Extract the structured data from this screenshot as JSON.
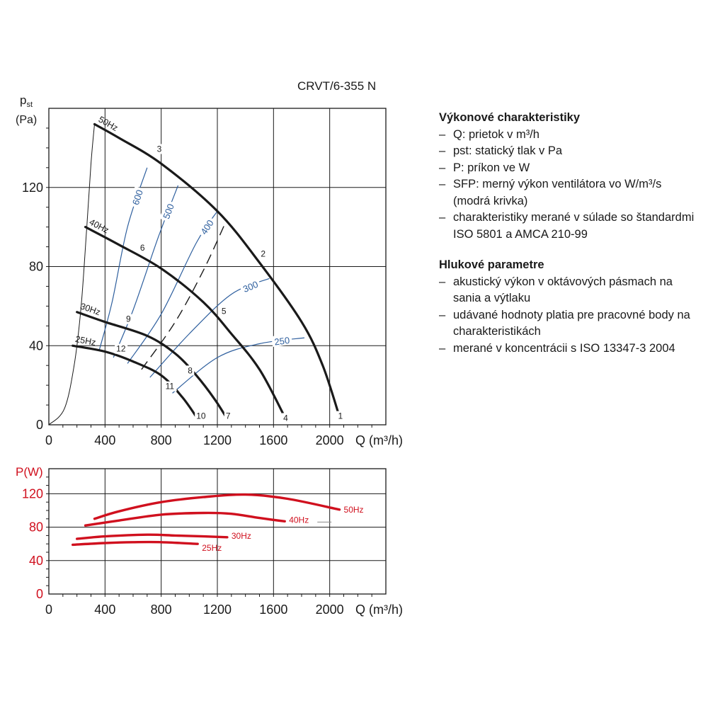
{
  "page": {
    "model": "CRVT/6-355 N"
  },
  "legend": {
    "title1": "Výkonové charakteristiky",
    "items1": [
      "Q: prietok v m³/h",
      "pst: statický tlak v Pa",
      "P: príkon ve W",
      "SFP: merný výkon ventilátora vo W/m³/s (modrá krivka)",
      "charakteristiky merané v súlade so štandardmi ISO 5801 a AMCA 210-99"
    ],
    "title2": "Hlukové parametre",
    "items2": [
      "akustický výkon v oktávových pásmach na sania a výtlaku",
      "udávané hodnoty platia pre pracovné body na charakteristikách",
      "merané v koncentrácii s ISO 13347-3 2004"
    ]
  },
  "colors": {
    "fan_curve": "#1a1a1a",
    "sfp_curve": "#2e5f9e",
    "power_curve": "#d0101e",
    "grid": "#1a1a1a"
  },
  "chart_data": [
    {
      "type": "line",
      "title": "",
      "xlabel": "Q (m³/h)",
      "ylabel": "pst (Pa)",
      "xlim": [
        0,
        2400
      ],
      "ylim": [
        0,
        160
      ],
      "x_ticks": [
        0,
        400,
        800,
        1200,
        1600,
        2000
      ],
      "y_ticks": [
        0,
        40,
        80,
        120
      ],
      "grid": true,
      "series": [
        {
          "name": "50Hz",
          "points": [
            [
              325,
              152
            ],
            [
              500,
              145
            ],
            [
              800,
              132
            ],
            [
              1200,
              108
            ],
            [
              1500,
              82
            ],
            [
              1800,
              52
            ],
            [
              1950,
              30
            ],
            [
              2070,
              4
            ]
          ]
        },
        {
          "name": "40Hz",
          "points": [
            [
              260,
              100
            ],
            [
              500,
              91
            ],
            [
              800,
              79
            ],
            [
              1100,
              62
            ],
            [
              1300,
              46
            ],
            [
              1500,
              28
            ],
            [
              1680,
              4
            ]
          ]
        },
        {
          "name": "30Hz",
          "points": [
            [
              200,
              57
            ],
            [
              400,
              52
            ],
            [
              700,
              45
            ],
            [
              900,
              36
            ],
            [
              1050,
              25
            ],
            [
              1180,
              13
            ],
            [
              1270,
              3
            ]
          ]
        },
        {
          "name": "25Hz",
          "points": [
            [
              170,
              40
            ],
            [
              400,
              37
            ],
            [
              600,
              32
            ],
            [
              800,
              25
            ],
            [
              950,
              14
            ],
            [
              1060,
              3
            ]
          ]
        }
      ],
      "sfp_curves": [
        {
          "label": "600",
          "points": [
            [
              360,
              38
            ],
            [
              450,
              62
            ],
            [
              560,
              100
            ],
            [
              700,
              130
            ]
          ]
        },
        {
          "label": "500",
          "points": [
            [
              460,
              34
            ],
            [
              600,
              58
            ],
            [
              780,
              95
            ],
            [
              920,
              121
            ]
          ]
        },
        {
          "label": "400",
          "points": [
            [
              560,
              31
            ],
            [
              800,
              56
            ],
            [
              1050,
              92
            ],
            [
              1200,
              108
            ]
          ]
        },
        {
          "label": "300",
          "points": [
            [
              720,
              24
            ],
            [
              1000,
              46
            ],
            [
              1300,
              66
            ],
            [
              1570,
              74
            ]
          ]
        },
        {
          "label": "250",
          "points": [
            [
              880,
              16
            ],
            [
              1200,
              34
            ],
            [
              1500,
              41
            ],
            [
              1820,
              44
            ]
          ]
        }
      ],
      "system_curves": [
        {
          "points": [
            [
              0,
              0
            ],
            [
              110,
              8
            ],
            [
              180,
              30
            ],
            [
              230,
              60
            ],
            [
              270,
              100
            ],
            [
              300,
              132
            ],
            [
              325,
              152
            ]
          ]
        },
        {
          "points": [
            [
              660,
              28
            ],
            [
              900,
              52
            ],
            [
              1100,
              78
            ],
            [
              1250,
              101
            ]
          ],
          "dashed": true
        }
      ],
      "point_labels": [
        {
          "text": "1",
          "at": [
            2090,
            3
          ]
        },
        {
          "text": "2",
          "at": [
            1540,
            85
          ]
        },
        {
          "text": "3",
          "at": [
            800,
            138
          ]
        },
        {
          "text": "4",
          "at": [
            1700,
            2
          ]
        },
        {
          "text": "5",
          "at": [
            1260,
            56
          ]
        },
        {
          "text": "6",
          "at": [
            680,
            88
          ]
        },
        {
          "text": "7",
          "at": [
            1290,
            3
          ]
        },
        {
          "text": "8",
          "at": [
            1020,
            26
          ]
        },
        {
          "text": "9",
          "at": [
            580,
            52
          ]
        },
        {
          "text": "10",
          "at": [
            1080,
            3
          ]
        },
        {
          "text": "11",
          "at": [
            860,
            18
          ]
        },
        {
          "text": "12",
          "at": [
            510,
            37
          ]
        }
      ]
    },
    {
      "type": "line",
      "title": "",
      "xlabel": "Q (m³/h)",
      "ylabel": "P(W)",
      "xlim": [
        0,
        2400
      ],
      "ylim": [
        0,
        150
      ],
      "x_ticks": [
        0,
        400,
        800,
        1200,
        1600,
        2000
      ],
      "y_ticks": [
        0,
        40,
        80,
        120
      ],
      "grid": true,
      "series": [
        {
          "name": "50Hz",
          "points": [
            [
              325,
              90
            ],
            [
              500,
              99
            ],
            [
              800,
              110
            ],
            [
              1100,
              116
            ],
            [
              1400,
              119
            ],
            [
              1700,
              114
            ],
            [
              2070,
              101
            ]
          ]
        },
        {
          "name": "40Hz",
          "points": [
            [
              260,
              82
            ],
            [
              500,
              88
            ],
            [
              800,
              95
            ],
            [
              1100,
              97
            ],
            [
              1300,
              96
            ],
            [
              1500,
              91
            ],
            [
              1680,
              87
            ]
          ]
        },
        {
          "name": "30Hz",
          "points": [
            [
              200,
              66
            ],
            [
              400,
              69
            ],
            [
              700,
              71
            ],
            [
              900,
              70
            ],
            [
              1100,
              69
            ],
            [
              1270,
              68
            ]
          ]
        },
        {
          "name": "25Hz",
          "points": [
            [
              170,
              59
            ],
            [
              400,
              61
            ],
            [
              600,
              62
            ],
            [
              800,
              62
            ],
            [
              1060,
              60
            ]
          ]
        }
      ]
    }
  ]
}
